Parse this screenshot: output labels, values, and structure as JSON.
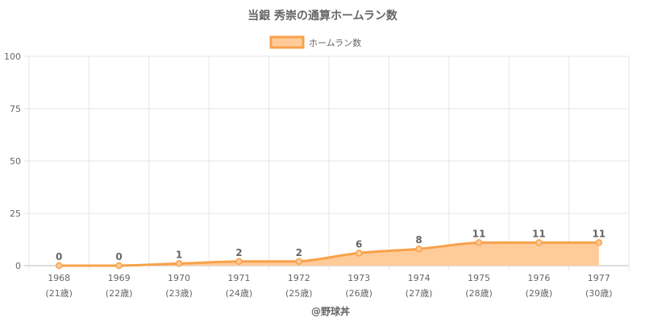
{
  "chart_data": {
    "type": "area",
    "title": "当銀 秀崇の通算ホームラン数",
    "series": [
      {
        "name": "ホームラン数",
        "values": [
          0,
          0,
          1,
          2,
          2,
          6,
          8,
          11,
          11,
          11
        ]
      }
    ],
    "categories": [
      "1968",
      "1969",
      "1970",
      "1971",
      "1972",
      "1973",
      "1974",
      "1975",
      "1976",
      "1977"
    ],
    "ages": [
      "(21歳)",
      "(22歳)",
      "(23歳)",
      "(24歳)",
      "(25歳)",
      "(26歳)",
      "(27歳)",
      "(28歳)",
      "(29歳)",
      "(30歳)"
    ],
    "ylim": [
      0,
      100
    ],
    "yticks": [
      0,
      25,
      50,
      75,
      100
    ],
    "grid": true,
    "legend_position": "top-center",
    "colors": {
      "line": "#f7a14a",
      "fill": "#ffcb99",
      "grid": "#e6e6e6",
      "text": "#666666"
    }
  },
  "credit": "@野球丼"
}
